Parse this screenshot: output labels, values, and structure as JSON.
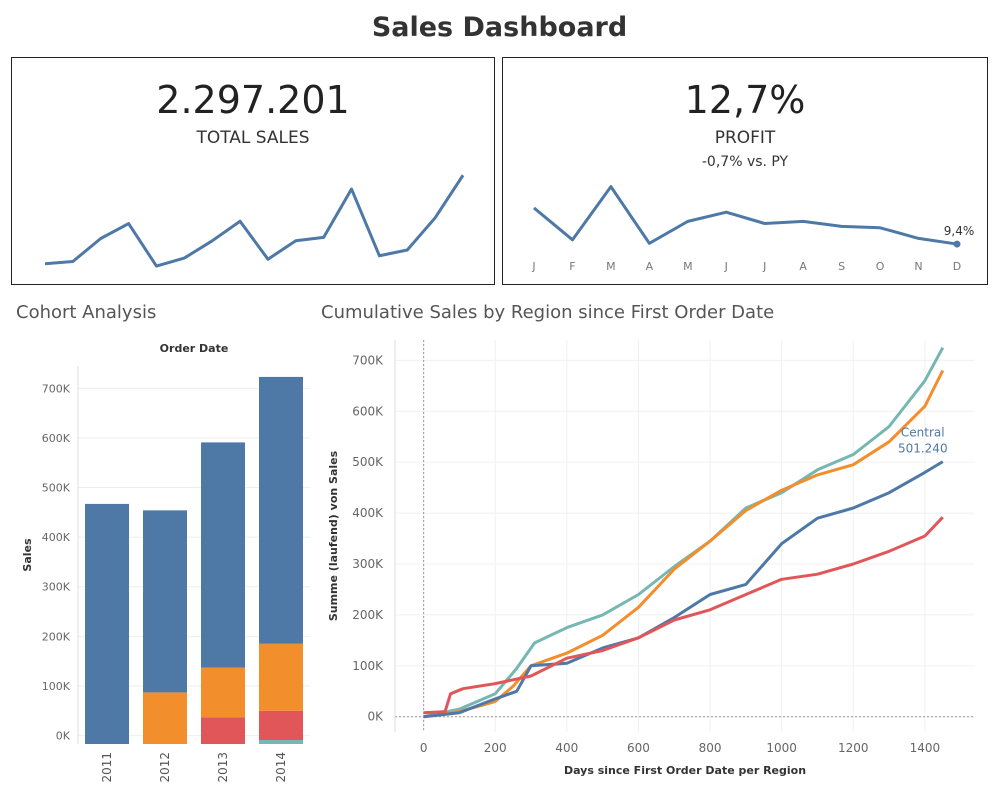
{
  "title": "Sales Dashboard",
  "colors": {
    "blue": "#4e79a7",
    "orange": "#f28e2b",
    "red": "#e15759",
    "teal": "#76b7b2"
  },
  "kpis": {
    "sales": {
      "value": "2.297.201",
      "label": "TOTAL SALES"
    },
    "profit": {
      "value": "12,7%",
      "label": "PROFIT",
      "sub": "-0,7% vs. PY",
      "last_label": "9,4%"
    }
  },
  "cohort": {
    "title": "Cohort Analysis"
  },
  "cumulative": {
    "title": "Cumulative Sales by Region since First Order Date"
  },
  "chart_data": [
    {
      "type": "line",
      "name": "sales-sparkline",
      "x": [
        1,
        2,
        3,
        4,
        5,
        6,
        7,
        8,
        9,
        10,
        11,
        12,
        13,
        14,
        15,
        16
      ],
      "values": [
        8,
        10,
        30,
        43,
        6,
        13,
        28,
        45,
        12,
        28,
        31,
        73,
        15,
        20,
        48,
        85
      ],
      "ylim": [
        0,
        100
      ]
    },
    {
      "type": "line",
      "name": "profit-sparkline",
      "categories": [
        "J",
        "F",
        "M",
        "A",
        "M",
        "J",
        "J",
        "A",
        "S",
        "O",
        "N",
        "D"
      ],
      "values": [
        14.5,
        10.0,
        17.5,
        9.5,
        12.6,
        13.9,
        12.3,
        12.6,
        11.9,
        11.7,
        10.2,
        9.4
      ],
      "ylim": [
        8,
        19
      ]
    },
    {
      "type": "bar",
      "stacked": true,
      "top_label": "Order Date",
      "ylabel": "Sales",
      "categories": [
        "2011",
        "2012",
        "2013",
        "2014"
      ],
      "yticks": [
        0,
        100000,
        200000,
        300000,
        400000,
        500000,
        600000,
        700000
      ],
      "ytick_labels": [
        "0K",
        "100K",
        "200K",
        "300K",
        "400K",
        "500K",
        "600K",
        "700K"
      ],
      "ylim": [
        -17000,
        745000
      ],
      "series": [
        {
          "color": "#4e79a7",
          "values": [
            484000,
            367000,
            454000,
            538000
          ]
        },
        {
          "color": "#f28e2b",
          "values": [
            0,
            104000,
            100000,
            135000
          ]
        },
        {
          "color": "#e15759",
          "values": [
            0,
            0,
            54000,
            59000
          ]
        },
        {
          "color": "#76b7b2",
          "values": [
            0,
            0,
            0,
            8000
          ]
        }
      ],
      "ybase": -17000
    },
    {
      "type": "line",
      "xlabel": "Days since First Order Date per Region",
      "ylabel": "Summe (laufend) von Sales",
      "xticks": [
        0,
        200,
        400,
        600,
        800,
        1000,
        1200,
        1400
      ],
      "yticks": [
        0,
        100000,
        200000,
        300000,
        400000,
        500000,
        600000,
        700000
      ],
      "ytick_labels": [
        "0K",
        "100K",
        "200K",
        "300K",
        "400K",
        "500K",
        "600K",
        "700K"
      ],
      "xlim": [
        -80,
        1540
      ],
      "ylim": [
        -30000,
        740000
      ],
      "grid": true,
      "annotation": {
        "series": "Central",
        "label": "Central",
        "value_label": "501.240"
      },
      "series": [
        {
          "color": "#76b7b2",
          "x": [
            0,
            100,
            200,
            260,
            310,
            400,
            500,
            600,
            700,
            800,
            900,
            1000,
            1100,
            1200,
            1300,
            1400,
            1450
          ],
          "y": [
            0,
            15000,
            45000,
            95000,
            145000,
            175000,
            200000,
            240000,
            295000,
            345000,
            410000,
            440000,
            485000,
            515000,
            570000,
            660000,
            725000
          ]
        },
        {
          "color": "#f28e2b",
          "x": [
            0,
            100,
            200,
            250,
            300,
            400,
            500,
            600,
            700,
            800,
            900,
            1000,
            1100,
            1200,
            1300,
            1400,
            1450
          ],
          "y": [
            0,
            10000,
            30000,
            60000,
            100000,
            125000,
            160000,
            215000,
            290000,
            345000,
            405000,
            445000,
            475000,
            495000,
            540000,
            610000,
            680000
          ]
        },
        {
          "color": "#4e79a7",
          "name": "Central",
          "x": [
            0,
            100,
            200,
            260,
            300,
            400,
            500,
            600,
            700,
            800,
            900,
            1000,
            1100,
            1200,
            1300,
            1400,
            1450
          ],
          "y": [
            0,
            8000,
            35000,
            50000,
            100000,
            105000,
            135000,
            155000,
            195000,
            240000,
            260000,
            340000,
            390000,
            410000,
            440000,
            480000,
            501240
          ]
        },
        {
          "color": "#e15759",
          "x": [
            0,
            60,
            75,
            110,
            200,
            300,
            400,
            500,
            600,
            700,
            800,
            900,
            1000,
            1100,
            1200,
            1300,
            1400,
            1450
          ],
          "y": [
            8000,
            10000,
            45000,
            55000,
            65000,
            80000,
            115000,
            130000,
            155000,
            190000,
            210000,
            240000,
            270000,
            280000,
            300000,
            325000,
            355000,
            392000
          ]
        }
      ]
    }
  ]
}
